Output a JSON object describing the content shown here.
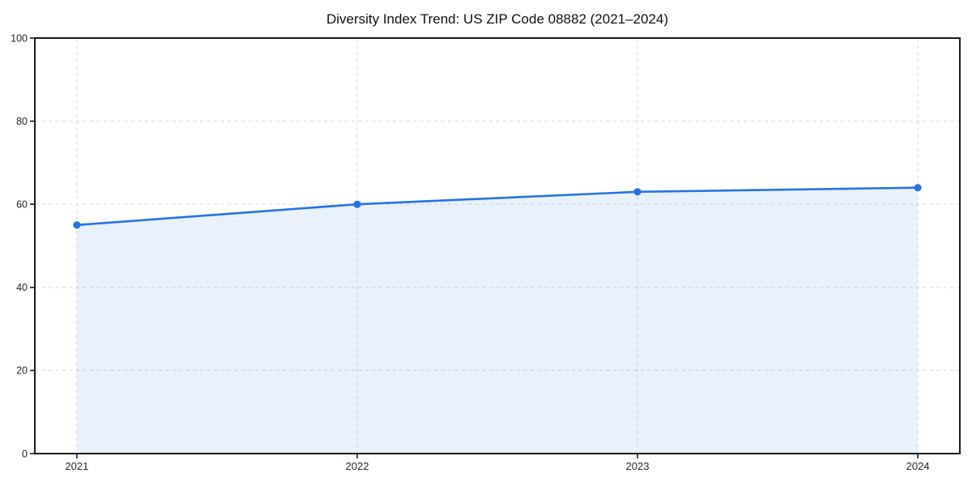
{
  "figure": {
    "title": "Diversity Index Trend: US ZIP Code 08882 (2021–2024)"
  },
  "chart_data": {
    "type": "area",
    "title": "Diversity Index Trend: US ZIP Code 08882 (2021–2024)",
    "x": [
      2021,
      2022,
      2023,
      2024
    ],
    "categories": [
      "2021",
      "2022",
      "2023",
      "2024"
    ],
    "series": [
      {
        "name": "Diversity Index",
        "values": [
          55,
          60,
          63,
          64
        ]
      }
    ],
    "xlabel": "",
    "ylabel": "",
    "xlim": [
      2020.85,
      2024.15
    ],
    "ylim": [
      0,
      100
    ],
    "xticks": [
      2021,
      2022,
      2023,
      2024
    ],
    "yticks": [
      0,
      20,
      40,
      60,
      80,
      100
    ],
    "grid": true,
    "grid_style": "dashed",
    "legend": "none",
    "colors": {
      "line": "#2674E4",
      "marker": "#2674E4",
      "area_fill": "#2674E4",
      "area_opacity": 0.1,
      "grid": "#dedede",
      "spine": "#1a1a1a",
      "tick": "#1a1a1a",
      "tick_label": "#262626",
      "title": "#111111",
      "background": "#ffffff"
    }
  }
}
